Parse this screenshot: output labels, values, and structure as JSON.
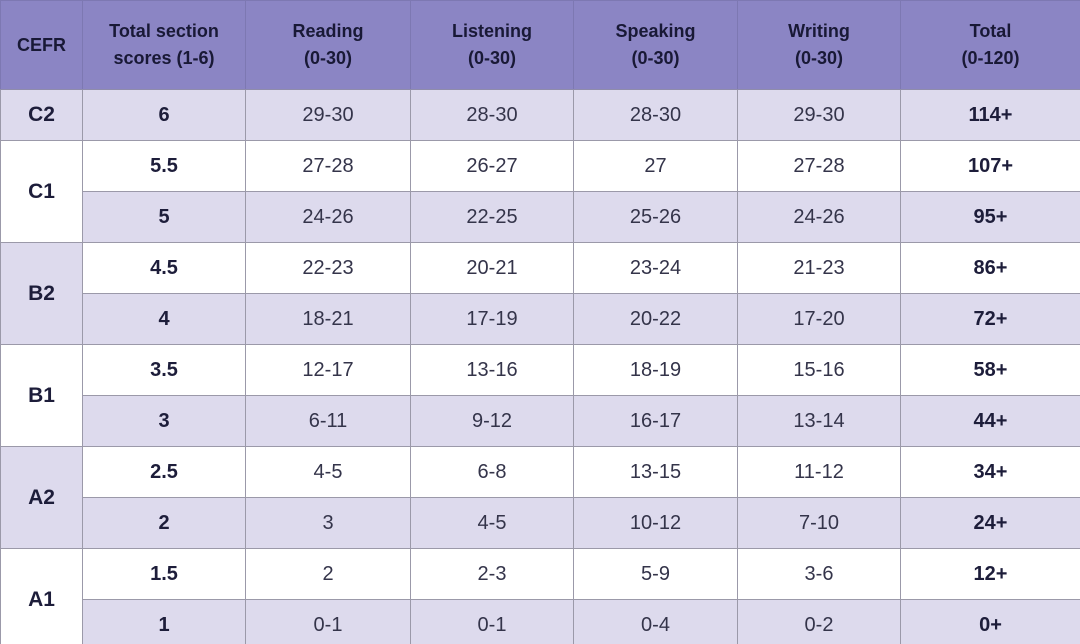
{
  "colors": {
    "header_bg": "#8b85c4",
    "header_border": "#7d78b2",
    "row_alt_bg": "#dddaed",
    "row_bg": "#ffffff",
    "grid_border": "#9b99a9",
    "header_text": "#191936",
    "cell_text": "#34344a",
    "bold_text": "#1d1d3a",
    "bottom_border": "#8a87a9"
  },
  "table": {
    "headers": [
      {
        "id": "cefr",
        "line1": "CEFR",
        "line2": ""
      },
      {
        "id": "section-scores",
        "line1": "Total section",
        "line2": "scores (1-6)"
      },
      {
        "id": "reading",
        "line1": "Reading",
        "line2": "(0-30)"
      },
      {
        "id": "listening",
        "line1": "Listening",
        "line2": "(0-30)"
      },
      {
        "id": "speaking",
        "line1": "Speaking",
        "line2": "(0-30)"
      },
      {
        "id": "writing",
        "line1": "Writing",
        "line2": "(0-30)"
      },
      {
        "id": "total",
        "line1": "Total",
        "line2": "(0-120)"
      }
    ],
    "groups": [
      {
        "cefr": "C2",
        "rows": [
          {
            "score": "6",
            "reading": "29-30",
            "listening": "28-30",
            "speaking": "28-30",
            "writing": "29-30",
            "total": "114+"
          }
        ]
      },
      {
        "cefr": "C1",
        "rows": [
          {
            "score": "5.5",
            "reading": "27-28",
            "listening": "26-27",
            "speaking": "27",
            "writing": "27-28",
            "total": "107+"
          },
          {
            "score": "5",
            "reading": "24-26",
            "listening": "22-25",
            "speaking": "25-26",
            "writing": "24-26",
            "total": "95+"
          }
        ]
      },
      {
        "cefr": "B2",
        "rows": [
          {
            "score": "4.5",
            "reading": "22-23",
            "listening": "20-21",
            "speaking": "23-24",
            "writing": "21-23",
            "total": "86+"
          },
          {
            "score": "4",
            "reading": "18-21",
            "listening": "17-19",
            "speaking": "20-22",
            "writing": "17-20",
            "total": "72+"
          }
        ]
      },
      {
        "cefr": "B1",
        "rows": [
          {
            "score": "3.5",
            "reading": "12-17",
            "listening": "13-16",
            "speaking": "18-19",
            "writing": "15-16",
            "total": "58+"
          },
          {
            "score": "3",
            "reading": "6-11",
            "listening": "9-12",
            "speaking": "16-17",
            "writing": "13-14",
            "total": "44+"
          }
        ]
      },
      {
        "cefr": "A2",
        "rows": [
          {
            "score": "2.5",
            "reading": "4-5",
            "listening": "6-8",
            "speaking": "13-15",
            "writing": "11-12",
            "total": "34+"
          },
          {
            "score": "2",
            "reading": "3",
            "listening": "4-5",
            "speaking": "10-12",
            "writing": "7-10",
            "total": "24+"
          }
        ]
      },
      {
        "cefr": "A1",
        "rows": [
          {
            "score": "1.5",
            "reading": "2",
            "listening": "2-3",
            "speaking": "5-9",
            "writing": "3-6",
            "total": "12+"
          },
          {
            "score": "1",
            "reading": "0-1",
            "listening": "0-1",
            "speaking": "0-4",
            "writing": "0-2",
            "total": "0+"
          }
        ]
      }
    ]
  },
  "chart_data": {
    "type": "table",
    "title": "CEFR score conversion table",
    "columns": [
      "CEFR",
      "Total section scores (1-6)",
      "Reading (0-30)",
      "Listening (0-30)",
      "Speaking (0-30)",
      "Writing (0-30)",
      "Total (0-120)"
    ],
    "rows": [
      [
        "C2",
        "6",
        "29-30",
        "28-30",
        "28-30",
        "29-30",
        "114+"
      ],
      [
        "C1",
        "5.5",
        "27-28",
        "26-27",
        "27",
        "27-28",
        "107+"
      ],
      [
        "C1",
        "5",
        "24-26",
        "22-25",
        "25-26",
        "24-26",
        "95+"
      ],
      [
        "B2",
        "4.5",
        "22-23",
        "20-21",
        "23-24",
        "21-23",
        "86+"
      ],
      [
        "B2",
        "4",
        "18-21",
        "17-19",
        "20-22",
        "17-20",
        "72+"
      ],
      [
        "B1",
        "3.5",
        "12-17",
        "13-16",
        "18-19",
        "15-16",
        "58+"
      ],
      [
        "B1",
        "3",
        "6-11",
        "9-12",
        "16-17",
        "13-14",
        "44+"
      ],
      [
        "A2",
        "2.5",
        "4-5",
        "6-8",
        "13-15",
        "11-12",
        "34+"
      ],
      [
        "A2",
        "2",
        "3",
        "4-5",
        "10-12",
        "7-10",
        "24+"
      ],
      [
        "A1",
        "1.5",
        "2",
        "2-3",
        "5-9",
        "3-6",
        "12+"
      ],
      [
        "A1",
        "1",
        "0-1",
        "0-1",
        "0-4",
        "0-2",
        "0+"
      ]
    ]
  }
}
